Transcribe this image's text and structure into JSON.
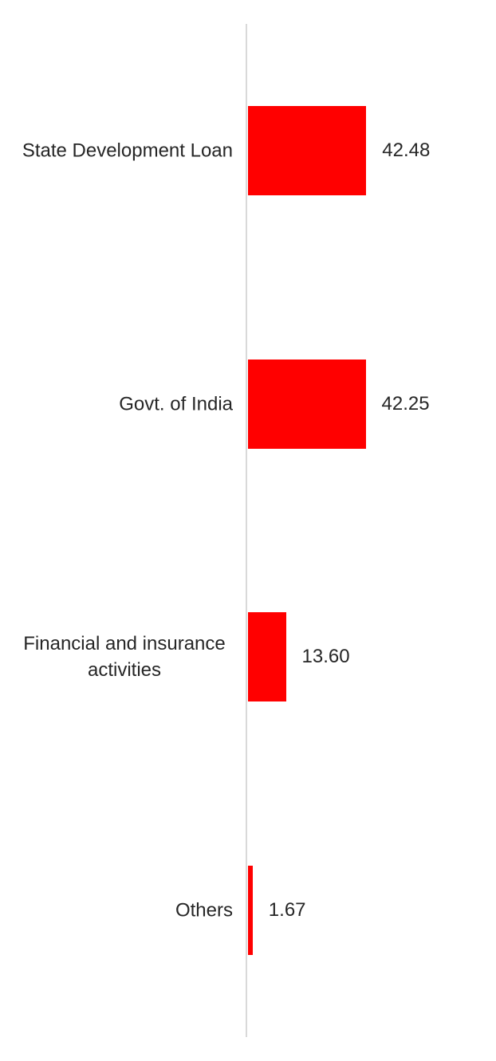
{
  "chart_data": {
    "type": "bar",
    "orientation": "horizontal",
    "title": "",
    "xlabel": "",
    "ylabel": "",
    "categories": [
      "State Development Loan",
      "Govt. of India",
      "Financial and insurance activities",
      "Others"
    ],
    "values": [
      42.48,
      42.25,
      13.6,
      1.67
    ],
    "value_labels": [
      "42.48",
      "42.25",
      "13.60",
      "1.67"
    ],
    "xlim": [
      0,
      45
    ],
    "grid": false,
    "legend": false,
    "data_labels": "outside-end",
    "bar_color": "#ff0000",
    "axis_line_color": "#d9d9d9",
    "label_color": "#262626"
  }
}
